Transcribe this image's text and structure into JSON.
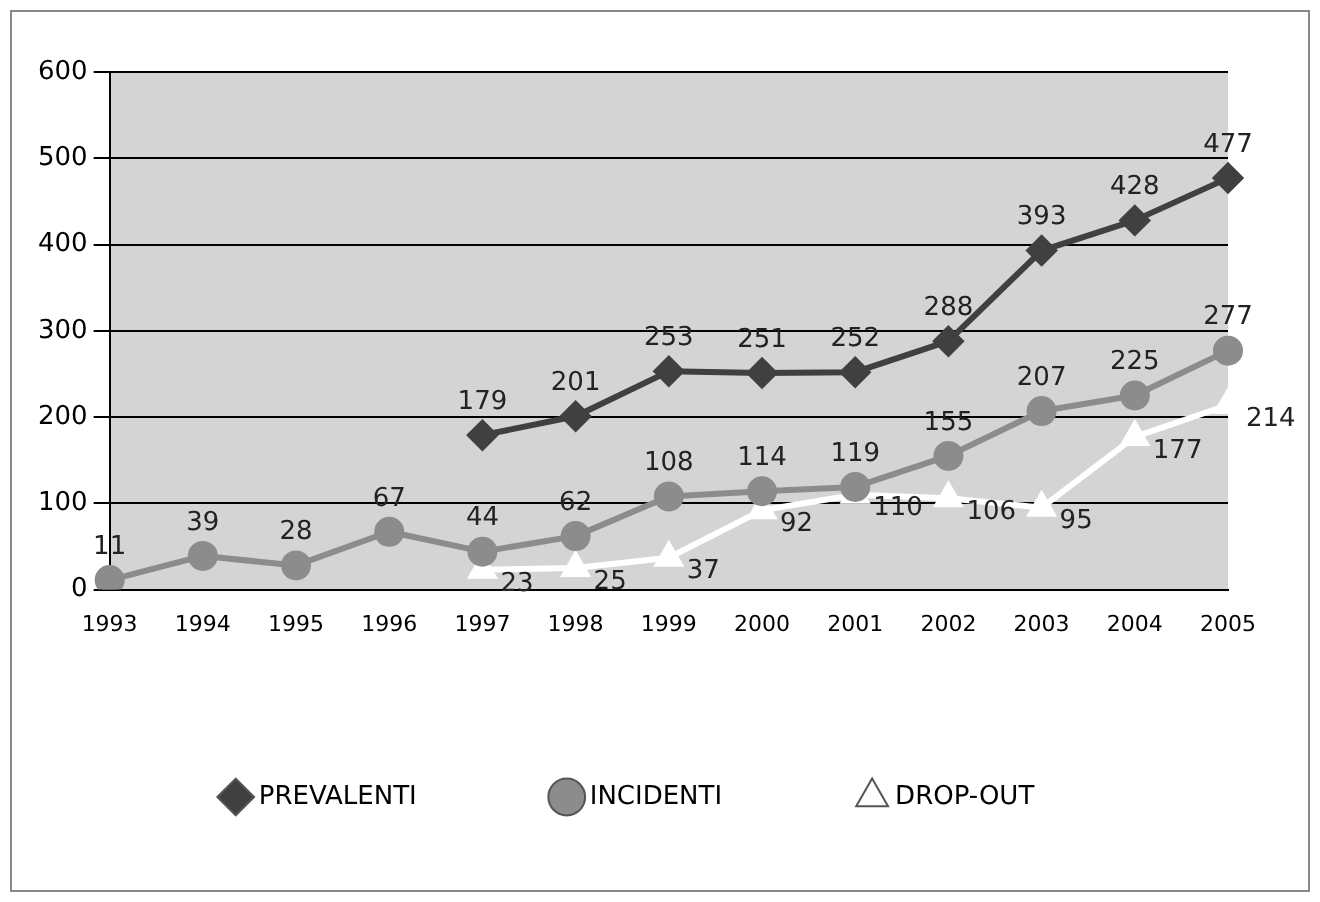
{
  "chart_data": {
    "type": "line",
    "categories": [
      "1993",
      "1994",
      "1995",
      "1996",
      "1997",
      "1998",
      "1999",
      "2000",
      "2001",
      "2002",
      "2003",
      "2004",
      "2005"
    ],
    "series": [
      {
        "name": "PREVALENTI",
        "color": "#404040",
        "marker": "diamond",
        "values": [
          null,
          null,
          null,
          null,
          179,
          201,
          253,
          251,
          252,
          288,
          393,
          428,
          477
        ]
      },
      {
        "name": "INCIDENTI",
        "color": "#8c8c8c",
        "marker": "circle",
        "values": [
          11,
          39,
          28,
          67,
          44,
          62,
          108,
          114,
          119,
          155,
          207,
          225,
          277
        ]
      },
      {
        "name": "DROP-OUT",
        "color": "#ffffff",
        "marker": "triangle",
        "values": [
          null,
          null,
          null,
          null,
          23,
          25,
          37,
          92,
          110,
          106,
          95,
          177,
          214
        ]
      }
    ],
    "ylim": [
      0,
      600
    ],
    "yticks": [
      0,
      100,
      200,
      300,
      400,
      500,
      600
    ],
    "grid": "y",
    "legend": "bottom",
    "data_labels": true,
    "line_style": "solid"
  }
}
